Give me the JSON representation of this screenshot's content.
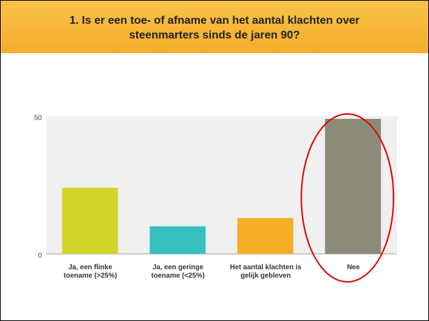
{
  "chart_data": {
    "type": "bar",
    "title": "1. Is er een toe- of afname van het aantal klachten over steenmarters sinds de jaren 90?",
    "categories": [
      "Ja, een flinke toename (>25%)",
      "Ja, een geringe toename (<25%)",
      "Het aantal klachten is gelijk gebleven",
      "Nee"
    ],
    "values": [
      24,
      10,
      13,
      49
    ],
    "colors": [
      "#d2d42c",
      "#37c0c0",
      "#f6ae24",
      "#8b8b78"
    ],
    "ylim": [
      0,
      50
    ],
    "yticks": [
      0,
      50
    ],
    "grid": false
  }
}
